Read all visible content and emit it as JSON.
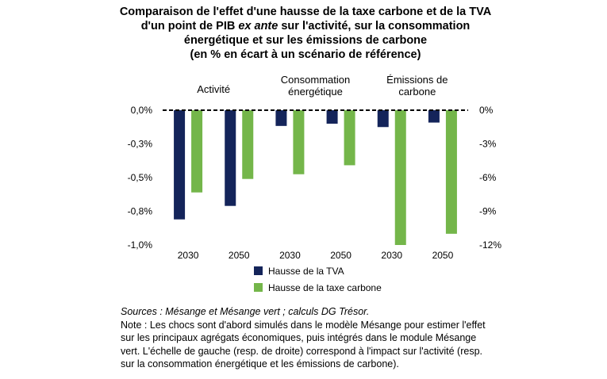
{
  "title": {
    "line1": "Comparaison de l'effet d'une hausse de la taxe carbone et de la TVA",
    "line2_pre": "d'un point de PIB ",
    "line2_em": "ex ante",
    "line2_post": " sur l'activité, sur la consommation",
    "line3": "énergétique et sur les émissions de carbone",
    "line4": "(en % en écart à un scénario de référence)"
  },
  "chart_data": {
    "type": "bar",
    "groups": [
      {
        "label_lines": [
          "Activité"
        ],
        "axis": "left"
      },
      {
        "label_lines": [
          "Consommation",
          "énergétique"
        ],
        "axis": "right"
      },
      {
        "label_lines": [
          "Émissions de",
          "carbone"
        ],
        "axis": "right"
      }
    ],
    "categories": [
      "2030",
      "2050",
      "2030",
      "2050",
      "2030",
      "2050"
    ],
    "series": [
      {
        "name": "Hausse de la TVA",
        "color": "#14245a",
        "values": [
          -0.81,
          -0.71,
          -1.4,
          -1.2,
          -1.5,
          -1.1
        ]
      },
      {
        "name": "Hausse de la taxe carbone",
        "color": "#74b64a",
        "values": [
          -0.61,
          -0.51,
          -5.7,
          -4.9,
          -12.0,
          -11.0
        ]
      }
    ],
    "left_axis": {
      "ylim": [
        -1.0,
        0.0
      ],
      "ticks": [
        {
          "v": 0,
          "label": "0,0%"
        },
        {
          "v": -0.25,
          "label": "-0,3%"
        },
        {
          "v": -0.5,
          "label": "-0,5%"
        },
        {
          "v": -0.75,
          "label": "-0,8%"
        },
        {
          "v": -1.0,
          "label": "-1,0%"
        }
      ]
    },
    "right_axis": {
      "ylim": [
        -12,
        0
      ],
      "ticks": [
        {
          "v": 0,
          "label": "0%"
        },
        {
          "v": -3,
          "label": "-3%"
        },
        {
          "v": -6,
          "label": "-6%"
        },
        {
          "v": -9,
          "label": "-9%"
        },
        {
          "v": -12,
          "label": "-12%"
        }
      ]
    },
    "legend_position": "bottom"
  },
  "notes": {
    "sources": "Sources : Mésange et Mésange vert ; calculs DG Trésor.",
    "note": "Note : Les chocs sont d'abord simulés dans le modèle Mésange pour estimer l'effet sur les principaux agrégats économiques, puis intégrés dans le module Mésange vert. L'échelle de gauche (resp. de droite) correspond à l'impact sur l'activité (resp. sur la consommation énergétique et les émissions de carbone)."
  }
}
